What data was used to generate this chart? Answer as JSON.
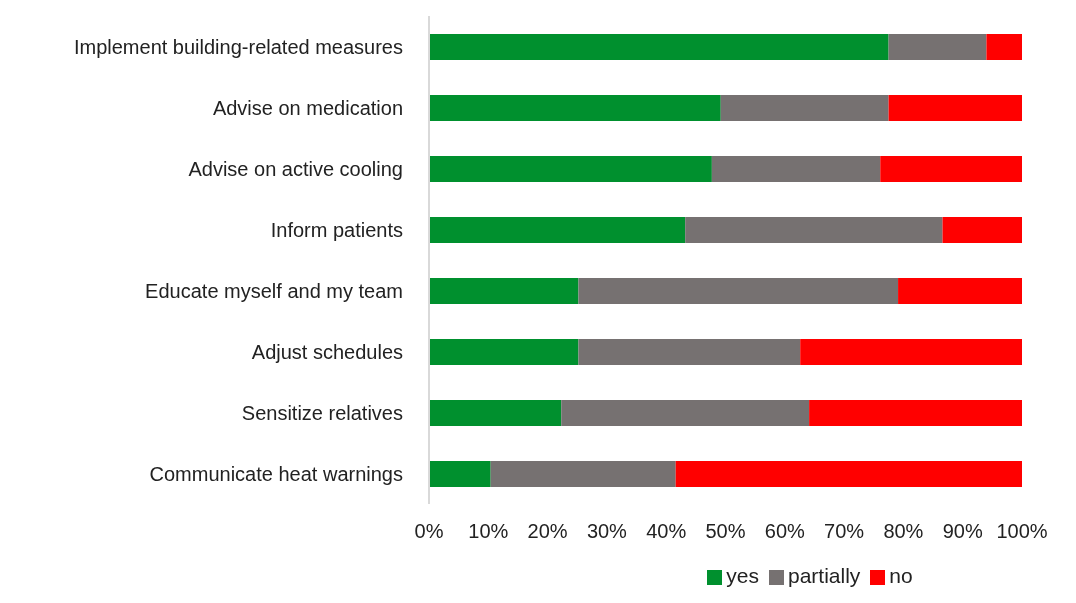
{
  "chart_data": {
    "type": "bar",
    "orientation": "horizontal",
    "stacked": true,
    "categories": [
      "Implement building-related measures",
      "Advise on medication",
      "Advise on active cooling",
      "Inform patients",
      "Educate myself and my team",
      "Adjust schedules",
      "Sensitize relatives",
      "Communicate heat warnings"
    ],
    "series": [
      {
        "name": "yes",
        "color": "#00902e",
        "values": [
          77.5,
          49.2,
          47.7,
          43.2,
          25.2,
          25.2,
          22.3,
          10.4
        ]
      },
      {
        "name": "partially",
        "color": "#767171",
        "values": [
          16.5,
          28.3,
          28.4,
          43.4,
          53.9,
          37.4,
          41.8,
          31.2
        ]
      },
      {
        "name": "no",
        "color": "#ff0000",
        "values": [
          6.0,
          22.5,
          23.9,
          13.4,
          20.9,
          37.4,
          35.9,
          58.4
        ]
      }
    ],
    "xlim": [
      0,
      100
    ],
    "xticks": [
      {
        "value": 0,
        "label": "0%"
      },
      {
        "value": 10,
        "label": "10%"
      },
      {
        "value": 20,
        "label": "20%"
      },
      {
        "value": 30,
        "label": "30%"
      },
      {
        "value": 40,
        "label": "40%"
      },
      {
        "value": 50,
        "label": "50%"
      },
      {
        "value": 60,
        "label": "60%"
      },
      {
        "value": 70,
        "label": "70%"
      },
      {
        "value": 80,
        "label": "80%"
      },
      {
        "value": 90,
        "label": "90%"
      },
      {
        "value": 100,
        "label": "100%"
      }
    ],
    "grid": false,
    "legend": "bottom"
  }
}
